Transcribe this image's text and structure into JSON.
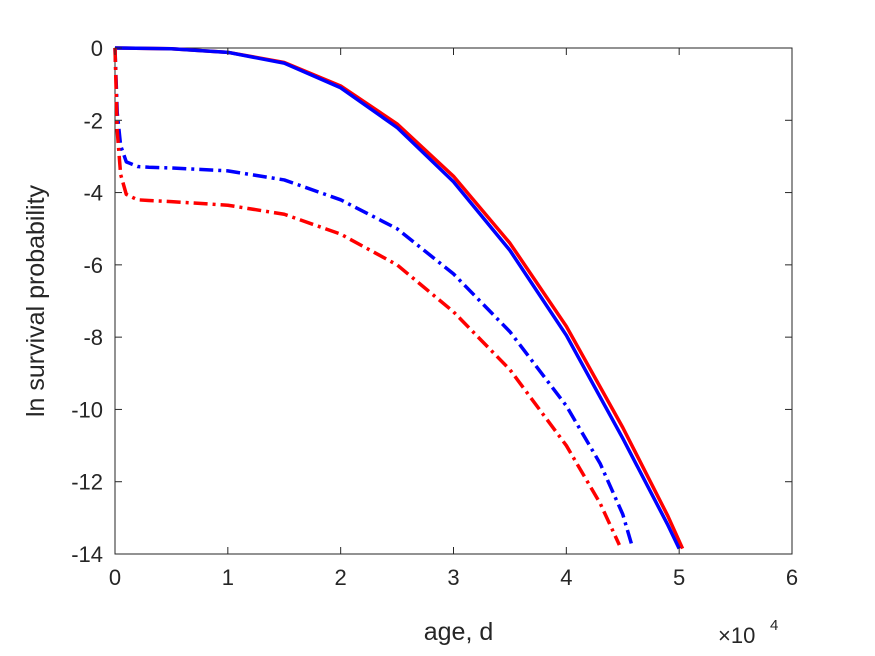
{
  "chart_data": {
    "type": "line",
    "title": "",
    "xlabel": "age, d",
    "ylabel": "ln survival probability",
    "x_exponent_label": "×10",
    "x_exponent_power": "4",
    "xlim": [
      0,
      60000
    ],
    "ylim": [
      -14,
      0
    ],
    "x_tick_values": [
      0,
      10000,
      20000,
      30000,
      40000,
      50000,
      60000
    ],
    "x_tick_labels": [
      "0",
      "1",
      "2",
      "3",
      "4",
      "5",
      "6"
    ],
    "y_tick_values": [
      0,
      -2,
      -4,
      -6,
      -8,
      -10,
      -12,
      -14
    ],
    "y_tick_labels": [
      "0",
      "-2",
      "-4",
      "-6",
      "-8",
      "-10",
      "-12",
      "-14"
    ],
    "grid": false,
    "legend": "none",
    "series": [
      {
        "color": "#ff0000",
        "style": "solid",
        "x": [
          0,
          5000,
          10000,
          15000,
          20000,
          25000,
          30000,
          35000,
          40000,
          45000,
          49000,
          50300
        ],
        "y": [
          0,
          -0.02,
          -0.12,
          -0.4,
          -1.05,
          -2.1,
          -3.55,
          -5.4,
          -7.7,
          -10.5,
          -12.95,
          -13.85
        ]
      },
      {
        "color": "#0000ff",
        "style": "solid",
        "x": [
          0,
          5000,
          10000,
          15000,
          20000,
          25000,
          30000,
          35000,
          40000,
          45000,
          49000,
          50000
        ],
        "y": [
          0,
          -0.02,
          -0.12,
          -0.42,
          -1.1,
          -2.2,
          -3.7,
          -5.6,
          -7.95,
          -10.8,
          -13.2,
          -13.85
        ]
      },
      {
        "color": "#0000ff",
        "style": "dashdot",
        "x": [
          0,
          200,
          500,
          1000,
          2000,
          3000,
          5000,
          10000,
          15000,
          20000,
          25000,
          30000,
          35000,
          40000,
          43000,
          45000,
          45800
        ],
        "y": [
          0,
          -1.8,
          -2.7,
          -3.15,
          -3.28,
          -3.3,
          -3.32,
          -3.4,
          -3.65,
          -4.2,
          -5.0,
          -6.25,
          -7.85,
          -9.9,
          -11.5,
          -12.9,
          -13.75
        ]
      },
      {
        "color": "#ff0000",
        "style": "dashdot",
        "x": [
          0,
          200,
          500,
          1000,
          2000,
          3000,
          5000,
          10000,
          15000,
          20000,
          25000,
          30000,
          35000,
          40000,
          43000,
          44700
        ],
        "y": [
          0,
          -2.3,
          -3.5,
          -4.05,
          -4.2,
          -4.22,
          -4.25,
          -4.35,
          -4.6,
          -5.15,
          -6.0,
          -7.3,
          -8.9,
          -11.0,
          -12.6,
          -13.75
        ]
      }
    ]
  }
}
